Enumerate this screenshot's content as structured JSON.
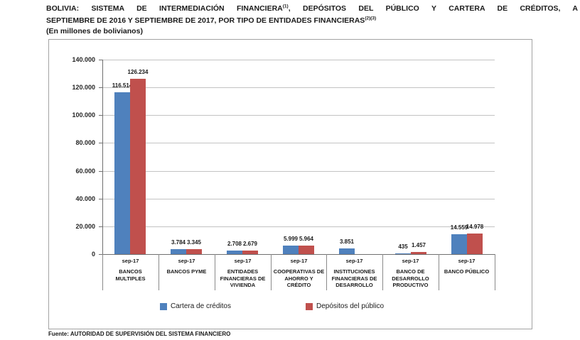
{
  "page": {
    "title": {
      "l1a": "BOLIVIA: SISTEMA DE INTERMEDIACIÓN FINANCIERA",
      "l1sup": "(1)",
      "l1b": ", DEPÓSITOS DEL PÚBLICO Y CARTERA DE CRÉDITOS, A",
      "l2a": "SEPTIEMBRE DE 2016 Y SEPTIEMBRE DE 2017, POR TIPO DE ENTIDADES FINANCIERAS",
      "l2sup": "(2)(3)"
    },
    "subtitle": "(En millones de bolivianos)",
    "source": "Fuente: AUTORIDAD DE SUPERVISIÓN DEL SISTEMA FINANCIERO"
  },
  "chart_data": {
    "type": "bar",
    "title": "BOLIVIA: SISTEMA DE INTERMEDIACIÓN FINANCIERA(1), DEPÓSITOS DEL PÚBLICO Y CARTERA DE CRÉDITOS, A SEPTIEMBRE DE 2016 Y SEPTIEMBRE DE 2017, POR TIPO DE ENTIDADES FINANCIERAS(2)(3)",
    "subtitle": "(En millones de bolivianos)",
    "unit": "millones de bolivianos",
    "categories": [
      "BANCOS MULTIPLES",
      "BANCOS PYME",
      "ENTIDADES FINANCIERAS DE VIVIENDA",
      "COOPERATIVAS DE AHORRO Y CRÉDITO",
      "INSTITUCIONES FINANCIERAS DE DESARROLLO",
      "BANCO DE DESARROLLO PRODUCTIVO",
      "BANCO PÚBLICO"
    ],
    "category_sub_labels": [
      "sep-17",
      "sep-17",
      "sep-17",
      "sep-17",
      "sep-17",
      "sep-17",
      "sep-17"
    ],
    "series": [
      {
        "name": "Cartera de créditos",
        "color": "#4F81BD",
        "values": [
          116514,
          3784,
          2708,
          5999,
          3851,
          435,
          14559
        ],
        "labels": [
          "116.514",
          "3.784",
          "2.708",
          "5.999",
          "3.851",
          "435",
          "14.559"
        ]
      },
      {
        "name": "Depósitos del público",
        "color": "#C0504D",
        "values": [
          126234,
          3345,
          2679,
          5964,
          null,
          1457,
          14978
        ],
        "labels": [
          "126.234",
          "3.345",
          "2.679",
          "5.964",
          "",
          "1.457",
          "14.978"
        ]
      }
    ],
    "ylim": [
      0,
      140000
    ],
    "ytick_step": 20000,
    "yticks": [
      0,
      20000,
      40000,
      60000,
      80000,
      100000,
      120000,
      140000
    ],
    "ytick_labels": [
      "0",
      "20.000",
      "40.000",
      "60.000",
      "80.000",
      "100.000",
      "120.000",
      "140.000"
    ],
    "grid": true,
    "legend_position": "bottom"
  }
}
